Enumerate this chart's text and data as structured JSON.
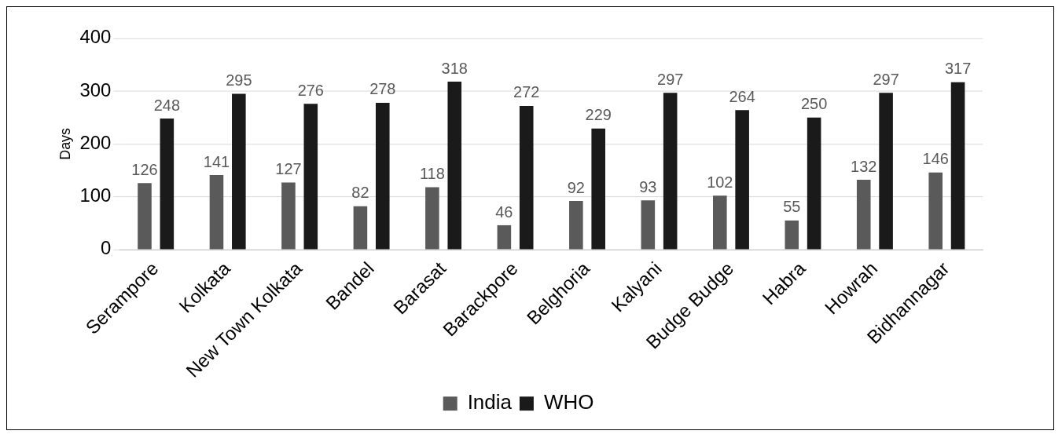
{
  "chart_data": {
    "type": "bar",
    "ylabel": "Days",
    "categories": [
      "Serampore",
      "Kolkata",
      "New Town Kolkata",
      "Bandel",
      "Barasat",
      "Barackpore",
      "Belghoria",
      "Kalyani",
      "Budge Budge",
      "Habra",
      "Howrah",
      "Bidhannagar"
    ],
    "series": [
      {
        "name": "India",
        "color": "#5a5a5a",
        "values": [
          126,
          141,
          127,
          82,
          118,
          46,
          92,
          93,
          102,
          55,
          132,
          146
        ]
      },
      {
        "name": "WHO",
        "color": "#1a1a1a",
        "values": [
          248,
          295,
          276,
          278,
          318,
          272,
          229,
          297,
          264,
          250,
          297,
          317
        ]
      }
    ],
    "ylim": [
      0,
      400
    ],
    "yticks": [
      0,
      100,
      200,
      300,
      400
    ],
    "grid": "y",
    "legend": "bottom",
    "data_labels": true
  }
}
